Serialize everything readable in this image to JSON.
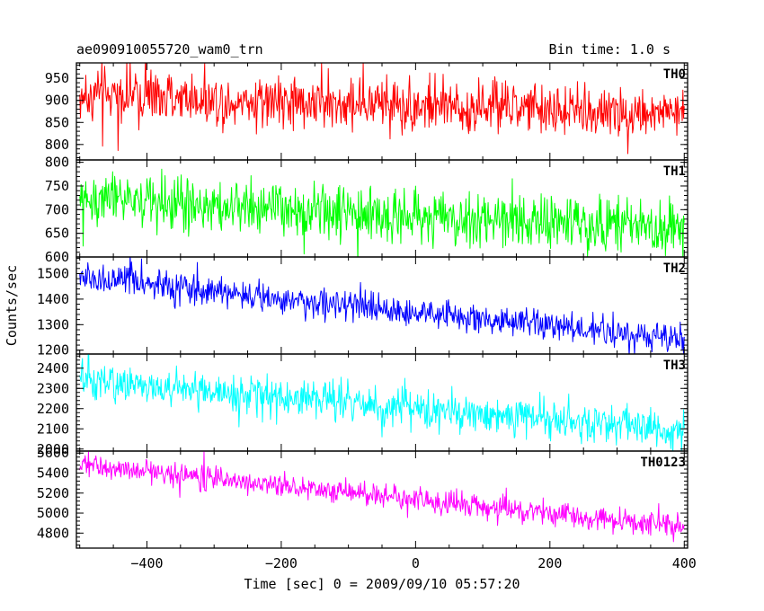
{
  "header": {
    "title": "ae090910055720_wam0_trn",
    "bin_time": "Bin time: 1.0 s"
  },
  "chart_data": {
    "type": "line",
    "xlabel": "Time [sec] 0 = 2009/09/10 05:57:20",
    "ylabel": "Counts/sec",
    "xlim": [
      -505,
      405
    ],
    "x_ticks": [
      -400,
      -200,
      0,
      200,
      400
    ],
    "panels": [
      {
        "name": "TH0",
        "color": "#ff0000",
        "ylim": [
          765,
          985
        ],
        "y_ticks": [
          800,
          850,
          900,
          950
        ],
        "trend": {
          "x": [
            -500,
            400
          ],
          "y": [
            912,
            868
          ]
        },
        "noise_amplitude": 42
      },
      {
        "name": "TH1",
        "color": "#00ff00",
        "ylim": [
          600,
          805
        ],
        "y_ticks": [
          600,
          650,
          700,
          750,
          800
        ],
        "trend": {
          "x": [
            -500,
            400
          ],
          "y": [
            722,
            658
          ]
        },
        "noise_amplitude": 40
      },
      {
        "name": "TH2",
        "color": "#0000ff",
        "ylim": [
          1185,
          1565
        ],
        "y_ticks": [
          1200,
          1300,
          1400,
          1500
        ],
        "trend": {
          "x": [
            -500,
            400
          ],
          "y": [
            1485,
            1240
          ]
        },
        "noise_amplitude": 42
      },
      {
        "name": "TH3",
        "color": "#00ffff",
        "ylim": [
          1990,
          2470
        ],
        "y_ticks": [
          2000,
          2100,
          2200,
          2300,
          2400
        ],
        "trend": {
          "x": [
            -500,
            400
          ],
          "y": [
            2335,
            2090
          ]
        },
        "noise_amplitude": 65
      },
      {
        "name": "TH0123",
        "color": "#ff00ff",
        "ylim": [
          4650,
          5620
        ],
        "y_ticks": [
          4800,
          5000,
          5200,
          5400,
          5600
        ],
        "trend": {
          "x": [
            -500,
            400
          ],
          "y": [
            5480,
            4860
          ]
        },
        "noise_amplitude": 85
      }
    ],
    "grid": false,
    "legend": "none"
  }
}
